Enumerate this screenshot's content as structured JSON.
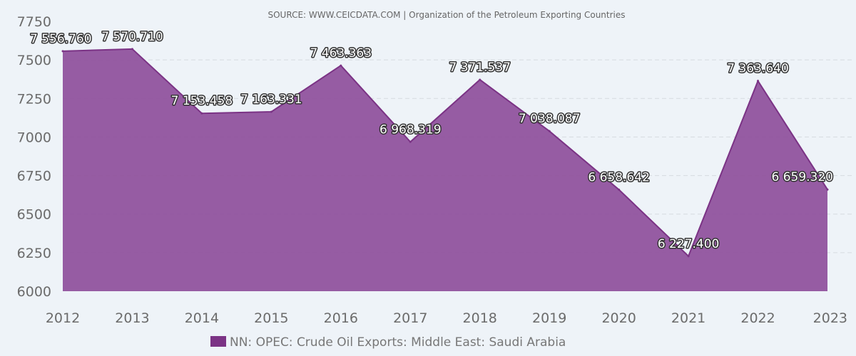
{
  "source": "SOURCE: WWW.CEICDATA.COM | Organization of the Petroleum Exporting Countries",
  "colors": {
    "area_fill": "#8e4f9b",
    "area_line": "#7b3385",
    "legend_swatch": "#7b3385",
    "background": "#eef3f8"
  },
  "chart_data": {
    "type": "area",
    "x": [
      "2012",
      "2013",
      "2014",
      "2015",
      "2016",
      "2017",
      "2018",
      "2019",
      "2020",
      "2021",
      "2022",
      "2023"
    ],
    "series": [
      {
        "name": "NN: OPEC: Crude Oil Exports: Middle East: Saudi Arabia",
        "values": [
          7556.76,
          7570.71,
          7153.458,
          7163.331,
          7463.363,
          6968.319,
          7371.537,
          7038.087,
          6658.642,
          6227.4,
          7363.64,
          6659.32
        ],
        "labels": [
          "7 556.760",
          "7 570.710",
          "7 153.458",
          "7 163.331",
          "7 463.363",
          "6 968.319",
          "7 371.537",
          "7 038.087",
          "6 658.642",
          "6 227.400",
          "7 363.640",
          "6 659.320"
        ]
      }
    ],
    "y_ticks": [
      "6000",
      "6250",
      "6500",
      "6750",
      "7000",
      "7250",
      "7500",
      "7750"
    ],
    "ylim": [
      6000,
      7750
    ],
    "grid": true,
    "legend_position": "bottom"
  }
}
